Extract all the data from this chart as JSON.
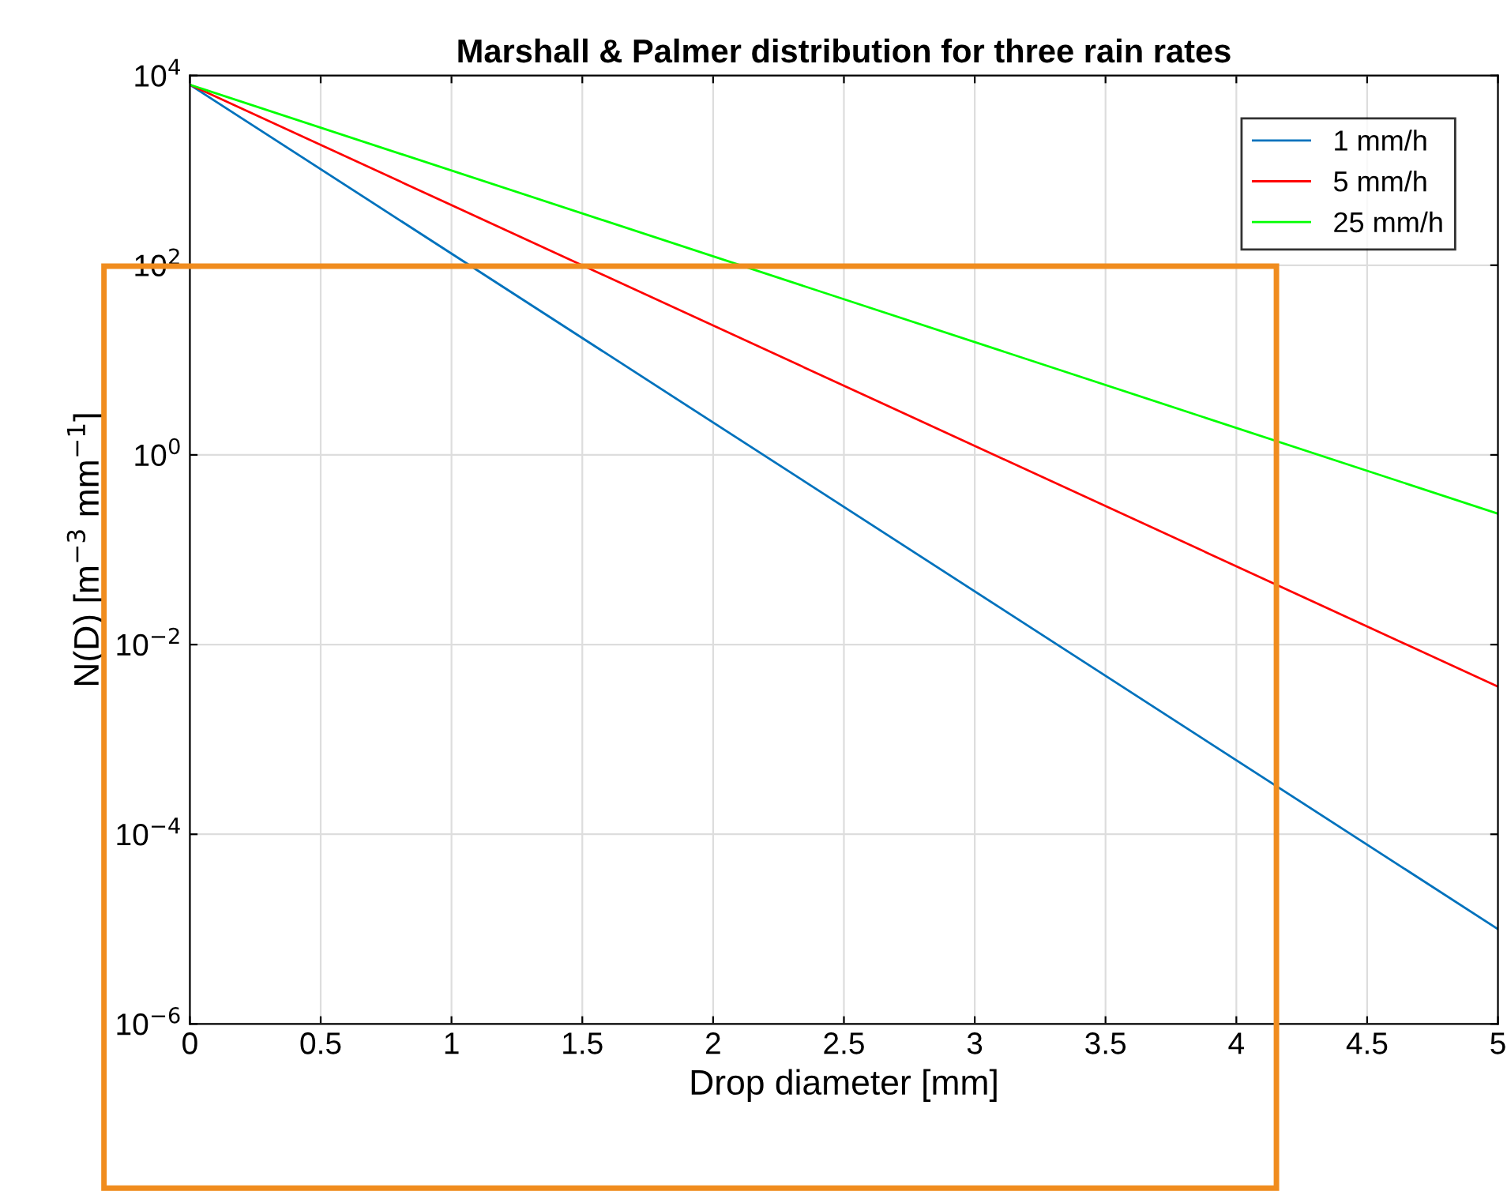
{
  "chart_data": {
    "type": "line",
    "title": "Marshall & Palmer distribution for three rain rates",
    "xlabel": "Drop diameter [mm]",
    "ylabel": "N(D) [m$^{−3}$ mm$^{−1}$]",
    "x": [
      0,
      5
    ],
    "series": [
      {
        "name": "1 mm/h",
        "color": "#0072bd",
        "values": [
          8000,
          1e-05
        ]
      },
      {
        "name": "5 mm/h",
        "color": "#ff0000",
        "values": [
          8000,
          0.0036
        ]
      },
      {
        "name": "25 mm/h",
        "color": "#00ff00",
        "values": [
          8000,
          0.24
        ]
      }
    ],
    "log": "y",
    "xlim": [
      0,
      5
    ],
    "ylim": [
      1e-06,
      10000
    ],
    "xticks": [
      0,
      0.5,
      1,
      1.5,
      2,
      2.5,
      3,
      3.5,
      4,
      4.5,
      5
    ],
    "yticks": [
      {
        "value": 1e-06,
        "label": "10$^{−6}$"
      },
      {
        "value": 0.0001,
        "label": "10$^{−4}$"
      },
      {
        "value": 0.01,
        "label": "10$^{−2}$"
      },
      {
        "value": 1,
        "label": "10$^{0}$"
      },
      {
        "value": 100,
        "label": "10$^{2}$"
      },
      {
        "value": 10000,
        "label": "10$^{4}$"
      }
    ],
    "grid": true,
    "legend": "top right",
    "marker": "none",
    "line_style": "solid"
  }
}
